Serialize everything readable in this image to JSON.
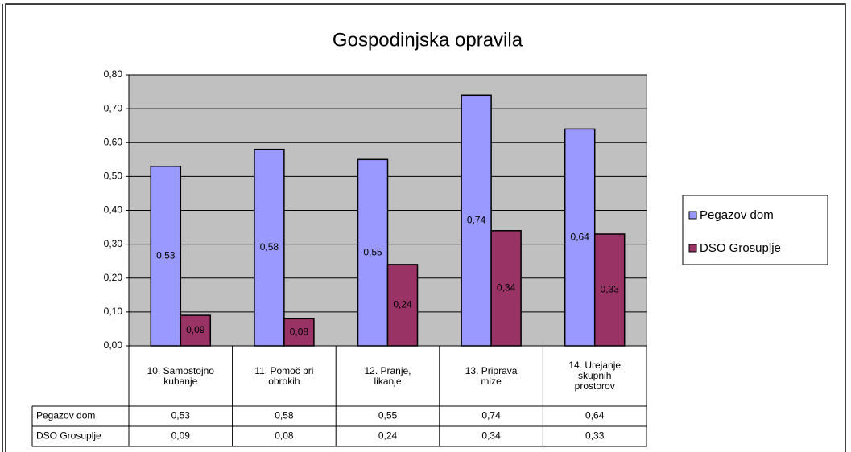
{
  "chart_data": {
    "type": "bar",
    "title": "Gospodinjska opravila",
    "categories": [
      "10. Samostojno kuhanje",
      "11. Pomoč pri obrokih",
      "12. Pranje, likanje",
      "13. Priprava mize",
      "14. Urejanje skupnih prostorov"
    ],
    "series": [
      {
        "name": "Pegazov dom",
        "color": "#9999ff",
        "values": [
          0.53,
          0.58,
          0.55,
          0.74,
          0.64
        ],
        "value_labels": [
          "0,53",
          "0,58",
          "0,55",
          "0,74",
          "0,64"
        ]
      },
      {
        "name": "DSO Grosuplje",
        "color": "#993366",
        "values": [
          0.09,
          0.08,
          0.24,
          0.34,
          0.33
        ],
        "value_labels": [
          "0,09",
          "0,08",
          "0,24",
          "0,34",
          "0,33"
        ]
      }
    ],
    "ylim": [
      0,
      0.8
    ],
    "yticks": [
      {
        "value": 0,
        "label": "0,00"
      },
      {
        "value": 0.1,
        "label": "0,10"
      },
      {
        "value": 0.2,
        "label": "0,20"
      },
      {
        "value": 0.3,
        "label": "0,30"
      },
      {
        "value": 0.4,
        "label": "0,40"
      },
      {
        "value": 0.5,
        "label": "0,50"
      },
      {
        "value": 0.6,
        "label": "0,60"
      },
      {
        "value": 0.7,
        "label": "0,70"
      },
      {
        "value": 0.8,
        "label": "0,80"
      }
    ],
    "grid": true,
    "legend": "right",
    "data_table": true
  }
}
